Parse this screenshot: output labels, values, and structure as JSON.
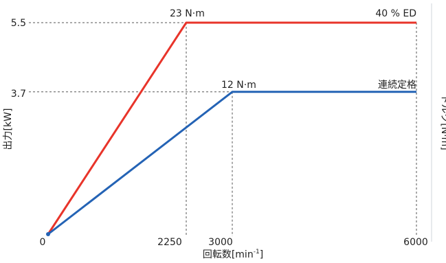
{
  "chart_data": {
    "type": "line",
    "xlabel": "回転数[min",
    "xlabel_sup": "-1",
    "xlabel_close": "]",
    "ylabel": "出力[kW]",
    "y2label": "トルク[N·m]",
    "xlim": [
      0,
      6000
    ],
    "ylim": [
      0,
      5.5
    ],
    "x_ticks": [
      "0",
      "2250",
      "3000",
      "6000"
    ],
    "y_ticks": [
      "5.5",
      "3.7"
    ],
    "grid": "dashed reference lines",
    "series": [
      {
        "name": "40 % ED",
        "color": "#e8342a",
        "x": [
          0,
          2250,
          6000
        ],
        "y": [
          0,
          5.5,
          5.5
        ]
      },
      {
        "name": "連続定格",
        "color": "#2463b5",
        "x": [
          0,
          3000,
          6000
        ],
        "y": [
          0,
          3.7,
          3.7
        ]
      }
    ],
    "annotations": [
      {
        "text": "23 N·m",
        "x": 2250,
        "y": 5.5
      },
      {
        "text": "12 N·m",
        "x": 3000,
        "y": 3.7
      }
    ]
  }
}
